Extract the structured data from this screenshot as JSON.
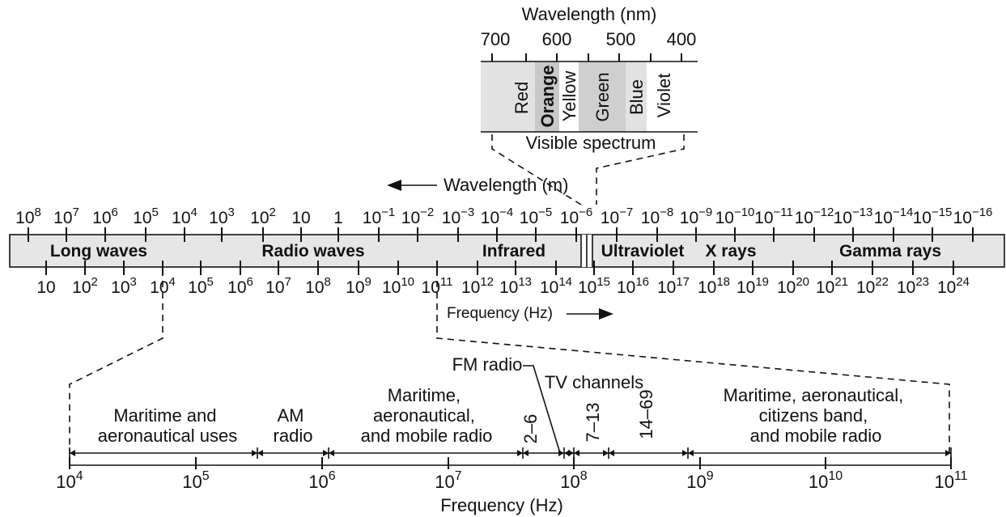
{
  "visible": {
    "axis_title": "Wavelength (nm)",
    "ticks": [
      "700",
      "600",
      "500",
      "400"
    ],
    "colors": [
      "Red",
      "Orange",
      "Yellow",
      "Green",
      "Blue",
      "Violet"
    ],
    "caption": "Visible spectrum"
  },
  "main": {
    "wavelength_label": "Wavelength (m)",
    "wavelength_ticks": [
      {
        "base": "10",
        "exp": "8"
      },
      {
        "base": "10",
        "exp": "7"
      },
      {
        "base": "10",
        "exp": "6"
      },
      {
        "base": "10",
        "exp": "5"
      },
      {
        "base": "10",
        "exp": "4"
      },
      {
        "base": "10",
        "exp": "3"
      },
      {
        "base": "10",
        "exp": "2"
      },
      {
        "base": "10",
        "exp": ""
      },
      {
        "base": "1",
        "exp": ""
      },
      {
        "base": "10",
        "exp": "−1"
      },
      {
        "base": "10",
        "exp": "−2"
      },
      {
        "base": "10",
        "exp": "−3"
      },
      {
        "base": "10",
        "exp": "−4"
      },
      {
        "base": "10",
        "exp": "−5"
      },
      {
        "base": "10",
        "exp": "−6"
      },
      {
        "base": "10",
        "exp": "−7"
      },
      {
        "base": "10",
        "exp": "−8"
      },
      {
        "base": "10",
        "exp": "−9"
      },
      {
        "base": "10",
        "exp": "−10"
      },
      {
        "base": "10",
        "exp": "−11"
      },
      {
        "base": "10",
        "exp": "−12"
      },
      {
        "base": "10",
        "exp": "−13"
      },
      {
        "base": "10",
        "exp": "−14"
      },
      {
        "base": "10",
        "exp": "−15"
      },
      {
        "base": "10",
        "exp": "−16"
      }
    ],
    "bands": [
      "Long waves",
      "Radio waves",
      "Infrared",
      "Ultraviolet",
      "X rays",
      "Gamma rays"
    ],
    "frequency_ticks": [
      {
        "base": "10",
        "exp": ""
      },
      {
        "base": "10",
        "exp": "2"
      },
      {
        "base": "10",
        "exp": "3"
      },
      {
        "base": "10",
        "exp": "4"
      },
      {
        "base": "10",
        "exp": "5"
      },
      {
        "base": "10",
        "exp": "6"
      },
      {
        "base": "10",
        "exp": "7"
      },
      {
        "base": "10",
        "exp": "8"
      },
      {
        "base": "10",
        "exp": "9"
      },
      {
        "base": "10",
        "exp": "10"
      },
      {
        "base": "10",
        "exp": "11"
      },
      {
        "base": "10",
        "exp": "12"
      },
      {
        "base": "10",
        "exp": "13"
      },
      {
        "base": "10",
        "exp": "14"
      },
      {
        "base": "10",
        "exp": "15"
      },
      {
        "base": "10",
        "exp": "16"
      },
      {
        "base": "10",
        "exp": "17"
      },
      {
        "base": "10",
        "exp": "18"
      },
      {
        "base": "10",
        "exp": "19"
      },
      {
        "base": "10",
        "exp": "20"
      },
      {
        "base": "10",
        "exp": "21"
      },
      {
        "base": "10",
        "exp": "22"
      },
      {
        "base": "10",
        "exp": "23"
      },
      {
        "base": "10",
        "exp": "24"
      }
    ],
    "frequency_label": "Frequency (Hz)"
  },
  "radio": {
    "ticks": [
      {
        "base": "10",
        "exp": "4"
      },
      {
        "base": "10",
        "exp": "5"
      },
      {
        "base": "10",
        "exp": "6"
      },
      {
        "base": "10",
        "exp": "7"
      },
      {
        "base": "10",
        "exp": "8"
      },
      {
        "base": "10",
        "exp": "9"
      },
      {
        "base": "10",
        "exp": "10"
      },
      {
        "base": "10",
        "exp": "11"
      }
    ],
    "axis_title": "Frequency (Hz)",
    "maritime1": [
      "Maritime and",
      "aeronautical uses"
    ],
    "am": [
      "AM",
      "radio"
    ],
    "maritime2": [
      "Maritime,",
      "aeronautical,",
      "and mobile radio"
    ],
    "fm": "FM radio",
    "tv": "TV channels",
    "ch_2_6": "2–6",
    "ch_7_13": "7–13",
    "ch_14_69": "14–69",
    "maritime3": [
      "Maritime, aeronautical,",
      "citizens band,",
      "and mobile radio"
    ]
  },
  "colors": {
    "band_fill": "#e6e6e6",
    "red": "#e2e2e2",
    "orange": "#c8c8c8",
    "yellow": "#ffffff",
    "green": "#cfcfcf",
    "blue": "#e2e2e2",
    "violet": "#ffffff",
    "gap": "#ffffff"
  }
}
